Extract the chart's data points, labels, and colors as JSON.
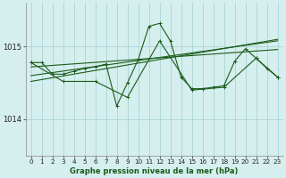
{
  "title": "Graphe pression niveau de la mer (hPa)",
  "bg_color": "#d5eeee",
  "grid_color": "#aad4d4",
  "line_color": "#1a5c1a",
  "xlim": [
    -0.5,
    23.5
  ],
  "ylim": [
    1013.5,
    1015.6
  ],
  "yticks": [
    1014,
    1015
  ],
  "xticks": [
    0,
    1,
    2,
    3,
    4,
    5,
    6,
    7,
    8,
    9,
    10,
    11,
    12,
    13,
    14,
    15,
    16,
    17,
    18,
    19,
    20,
    21,
    22,
    23
  ],
  "series": [
    {
      "x": [
        0,
        1,
        2,
        3,
        4,
        5,
        6,
        7,
        8,
        9,
        10,
        11,
        12,
        13,
        14,
        15,
        16,
        17,
        18,
        19,
        20,
        21,
        22,
        23
      ],
      "y": [
        1014.78,
        1014.78,
        1014.62,
        1014.62,
        1014.66,
        1014.7,
        1014.72,
        1014.76,
        1014.18,
        1014.5,
        1014.82,
        1015.28,
        1015.32,
        1015.08,
        1014.58,
        1014.42,
        1014.42,
        1014.44,
        1014.46,
        1014.8,
        1014.97,
        1014.84,
        1014.7,
        1014.58
      ]
    },
    {
      "x": [
        0,
        3,
        6,
        9,
        12,
        15,
        18,
        21,
        23
      ],
      "y": [
        1014.78,
        1014.52,
        1014.52,
        1014.3,
        1015.08,
        1014.4,
        1014.44,
        1014.84,
        1014.58
      ]
    },
    {
      "x": [
        0,
        23
      ],
      "y": [
        1014.72,
        1014.96
      ]
    },
    {
      "x": [
        0,
        23
      ],
      "y": [
        1014.6,
        1015.08
      ]
    },
    {
      "x": [
        0,
        23
      ],
      "y": [
        1014.52,
        1015.1
      ]
    }
  ]
}
